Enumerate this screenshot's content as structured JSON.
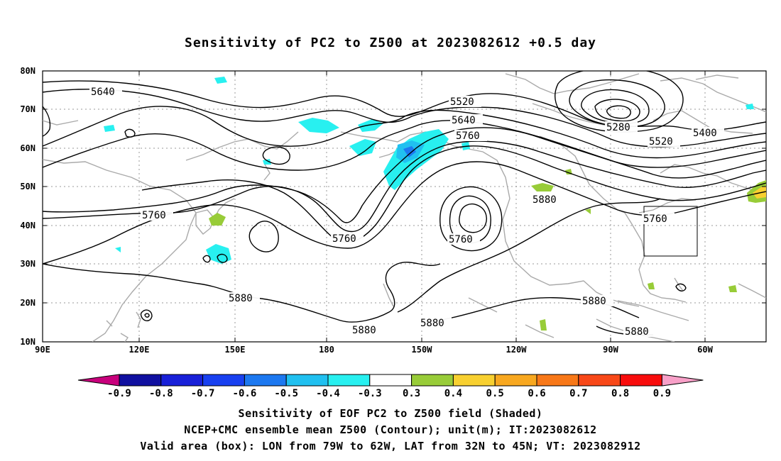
{
  "title": "Sensitivity of PC2 to Z500 at 2023082612 +0.5 day",
  "map": {
    "lat_labels": [
      "80N",
      "70N",
      "60N",
      "50N",
      "40N",
      "30N",
      "20N",
      "10N"
    ],
    "lon_labels": [
      "90E",
      "120E",
      "150E",
      "180",
      "150W",
      "120W",
      "90W",
      "60W"
    ],
    "contour_labels": [
      "5640",
      "5520",
      "5640",
      "5760",
      "5280",
      "5400",
      "5520",
      "5880",
      "5760",
      "5760",
      "5760",
      "5760",
      "5880",
      "5880",
      "5880",
      "5880",
      "5880"
    ],
    "valid_box": {
      "lon_from": "79W",
      "lon_to": "62W",
      "lat_from": "32N",
      "lat_to": "45N"
    }
  },
  "colorbar": {
    "labels": [
      "-0.9",
      "-0.8",
      "-0.7",
      "-0.6",
      "-0.5",
      "-0.4",
      "-0.3",
      "0.3",
      "0.4",
      "0.5",
      "0.6",
      "0.7",
      "0.8",
      "0.9"
    ],
    "colors": [
      "#c8007c",
      "#1010a0",
      "#1820d8",
      "#1840f0",
      "#1c78f0",
      "#20c0f0",
      "#28f0f0",
      "#ffffff",
      "#98cc38",
      "#f8d030",
      "#f8a820",
      "#f87818",
      "#f84818",
      "#f80c0c",
      "#f8a0c8"
    ]
  },
  "captions": {
    "line1": "Sensitivity of EOF PC2 to Z500 field (Shaded)",
    "line2": "NCEP+CMC ensemble mean Z500 (Contour); unit(m); IT:2023082612",
    "line3": "Valid area (box): LON from 79W to 62W, LAT from 32N to 45N; VT: 2023082912"
  }
}
